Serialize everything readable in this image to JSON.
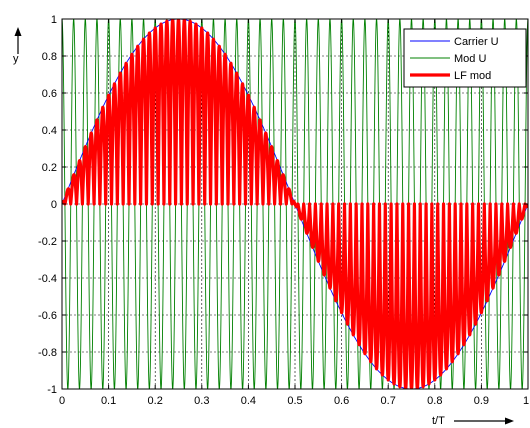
{
  "chart_data": {
    "type": "line",
    "title": "",
    "xlabel": "t/T",
    "ylabel": "y",
    "xlim": [
      0,
      1
    ],
    "ylim": [
      -1,
      1
    ],
    "x_ticks": [
      0,
      0.1,
      0.2,
      0.3,
      0.4,
      0.5,
      0.6,
      0.7,
      0.8,
      0.9,
      1
    ],
    "x_tick_labels": [
      "0",
      "0.1",
      "0.2",
      "0.3",
      "0.4",
      "0.5",
      "0.6",
      "0.7",
      "0.8",
      "0.9",
      "1"
    ],
    "y_ticks": [
      -1,
      -0.8,
      -0.6,
      -0.4,
      -0.2,
      0,
      0.2,
      0.4,
      0.6,
      0.8,
      1
    ],
    "y_tick_labels": [
      "-1",
      "-0.8",
      "-0.6",
      "-0.4",
      "-0.2",
      "0",
      "0.2",
      "0.4",
      "0.6",
      "0.8",
      "1"
    ],
    "grid": true,
    "grid_style": "dotted",
    "legend_position": "top-right",
    "series": [
      {
        "name": "Carrier U",
        "color": "#0000ff",
        "formula": "sin(2*pi*x)",
        "line": "thin"
      },
      {
        "name": "Mod U",
        "color": "#008000",
        "formula": "cos(2*pi*40*x)",
        "cycles": 40,
        "line": "thin"
      },
      {
        "name": "LF mod",
        "color": "#ff0000",
        "formula": "sin(2*pi*x) * |cos(2*pi*40*x)|",
        "line": "thick"
      }
    ]
  }
}
